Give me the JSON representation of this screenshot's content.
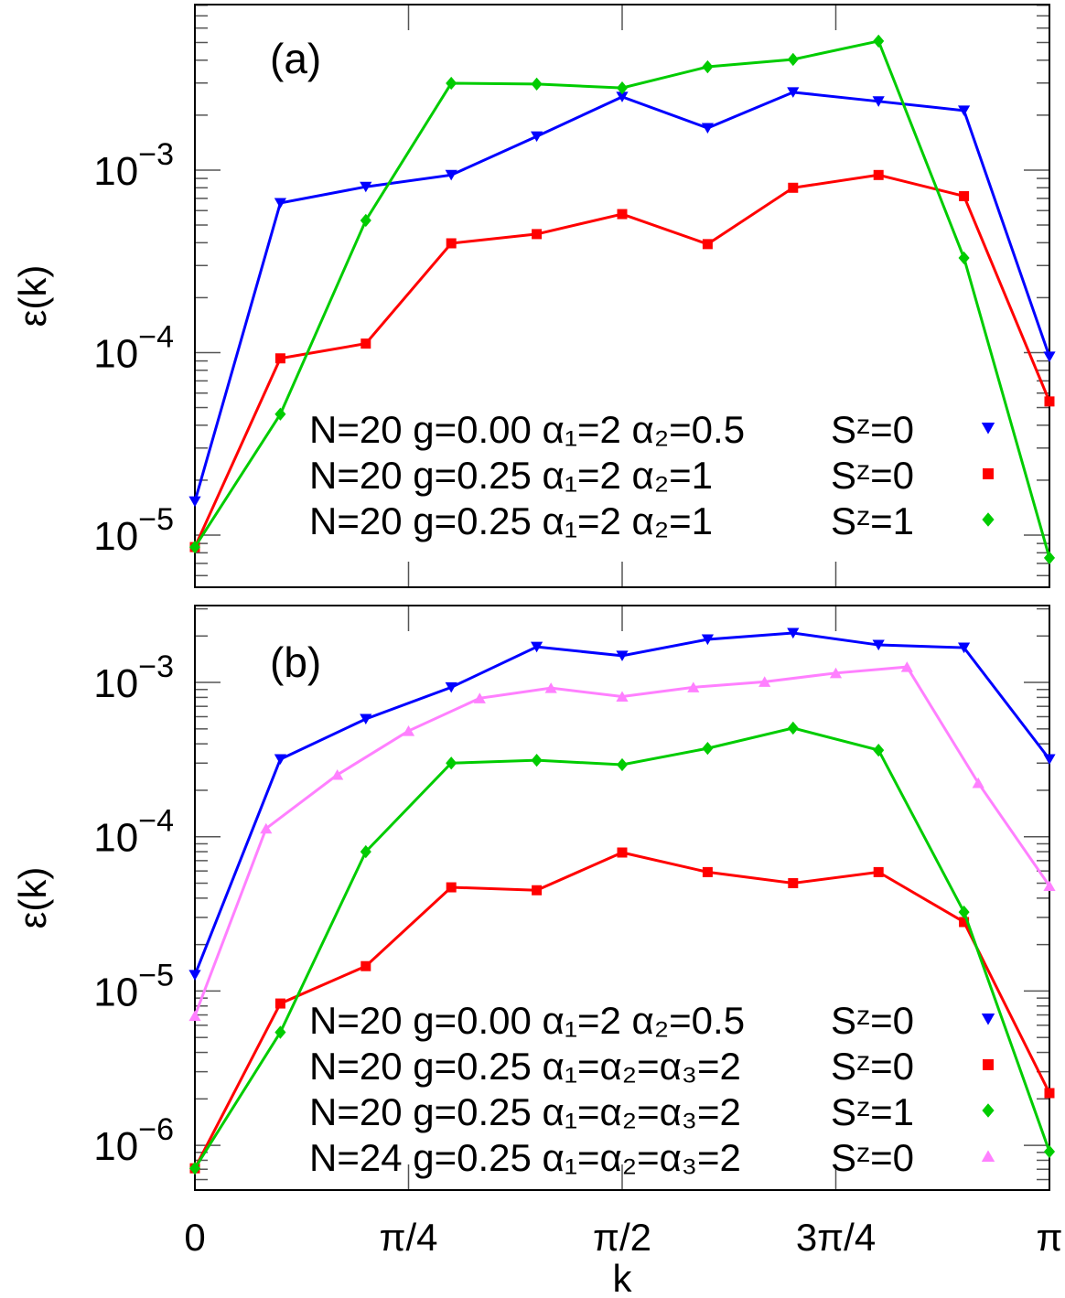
{
  "chart_data": [
    {
      "type": "line",
      "panel_label": "(a)",
      "ylabel": "ε(k)",
      "xlabel": "",
      "y_scale": "log",
      "ylim": [
        0.00807,
        5.18e-06
      ],
      "ylim_note": "",
      "y_range": [
        5.18e-06,
        0.00807
      ],
      "x_range": [
        0,
        3.14159
      ],
      "y_ticks": [
        {
          "base": "10",
          "exp": "−3",
          "value": 0.001
        },
        {
          "base": "10",
          "exp": "−4",
          "value": 0.0001
        },
        {
          "base": "10",
          "exp": "−5",
          "value": 1e-05
        }
      ],
      "series": [
        {
          "name": "N=20 g=0.00 α₁=2 α₂=0.5",
          "spin": "Sᶻ=0",
          "color": "#0000ff",
          "marker": "triangle-down",
          "x": [
            0,
            0.1,
            0.2,
            0.3,
            0.4,
            0.5,
            0.6,
            0.7,
            0.8,
            0.9,
            1.0
          ],
          "values": [
            1.53e-05,
            0.00066,
            0.00081,
            0.00094,
            0.00153,
            0.00252,
            0.0017,
            0.00267,
            0.00238,
            0.00212,
            9.5e-05
          ]
        },
        {
          "name": "N=20 g=0.25 α₁=2 α₂=1",
          "spin": "Sᶻ=0",
          "color": "#ff0000",
          "marker": "square",
          "x": [
            0,
            0.1,
            0.2,
            0.3,
            0.4,
            0.5,
            0.6,
            0.7,
            0.8,
            0.9,
            1.0
          ],
          "values": [
            8.6e-06,
            9.3e-05,
            0.000112,
            0.000397,
            0.000446,
            0.000574,
            0.000393,
            0.0008,
            0.00094,
            0.00072,
            5.4e-05
          ]
        },
        {
          "name": "N=20 g=0.25 α₁=2 α₂=1",
          "spin": "Sᶻ=1",
          "color": "#00cc00",
          "marker": "diamond",
          "x": [
            0,
            0.1,
            0.2,
            0.3,
            0.4,
            0.5,
            0.6,
            0.7,
            0.8,
            0.9,
            1.0
          ],
          "values": [
            8.6e-06,
            4.6e-05,
            0.00053,
            0.00299,
            0.00296,
            0.00282,
            0.00368,
            0.00404,
            0.00509,
            0.00033,
            7.5e-06
          ]
        }
      ],
      "legend_position": "bottom-right",
      "grid": false
    },
    {
      "type": "line",
      "panel_label": "(b)",
      "ylabel": "ε(k)",
      "xlabel": "k",
      "y_scale": "log",
      "y_range": [
        5.13e-07,
        0.00315
      ],
      "x_range": [
        0,
        3.14159
      ],
      "x_ticks": [
        "0",
        "π/4",
        "π/2",
        "3π/4",
        "π"
      ],
      "x_tick_values_over_pi": [
        0,
        0.25,
        0.5,
        0.75,
        1
      ],
      "y_ticks": [
        {
          "base": "10",
          "exp": "−3",
          "value": 0.001
        },
        {
          "base": "10",
          "exp": "−4",
          "value": 0.0001
        },
        {
          "base": "10",
          "exp": "−5",
          "value": 1e-05
        },
        {
          "base": "10",
          "exp": "−6",
          "value": 1e-06
        }
      ],
      "series": [
        {
          "name": "N=20 g=0.00 α₁=2 α₂=0.5",
          "spin": "Sᶻ=0",
          "color": "#0000ff",
          "marker": "triangle-down",
          "x": [
            0,
            0.1,
            0.2,
            0.3,
            0.4,
            0.5,
            0.6,
            0.7,
            0.8,
            0.9,
            1.0
          ],
          "values": [
            1.27e-05,
            0.000318,
            0.00058,
            0.00093,
            0.0017,
            0.00149,
            0.0019,
            0.00209,
            0.00175,
            0.00168,
            0.000318
          ]
        },
        {
          "name": "N=20 g=0.25 α₁=α₂=α₃=2",
          "spin": "Sᶻ=0",
          "color": "#ff0000",
          "marker": "square",
          "x": [
            0,
            0.1,
            0.2,
            0.3,
            0.4,
            0.5,
            0.6,
            0.7,
            0.8,
            0.9,
            1.0
          ],
          "values": [
            7.1e-07,
            8.3e-06,
            1.45e-05,
            4.7e-05,
            4.5e-05,
            7.9e-05,
            5.9e-05,
            5e-05,
            5.9e-05,
            2.8e-05,
            2.18e-06
          ]
        },
        {
          "name": "N=20 g=0.25 α₁=α₂=α₃=2",
          "spin": "Sᶻ=1",
          "color": "#00cc00",
          "marker": "diamond",
          "x": [
            0,
            0.1,
            0.2,
            0.3,
            0.4,
            0.5,
            0.6,
            0.7,
            0.8,
            0.9,
            1.0
          ],
          "values": [
            7.1e-07,
            5.4e-06,
            8e-05,
            0.0003,
            0.000313,
            0.000293,
            0.000374,
            0.000506,
            0.000364,
            3.25e-05,
            9.1e-07
          ]
        },
        {
          "name": "N=24 g=0.25 α₁=α₂=α₃=2",
          "spin": "Sᶻ=0",
          "color": "#ff80ff",
          "marker": "triangle-up",
          "x": [
            0,
            0.0833,
            0.1667,
            0.25,
            0.3333,
            0.4167,
            0.5,
            0.5833,
            0.6667,
            0.75,
            0.8333,
            0.9167,
            1.0
          ],
          "values": [
            6.9e-06,
            0.000113,
            0.000252,
            0.000485,
            0.00079,
            0.00092,
            0.00081,
            0.00093,
            0.00101,
            0.00115,
            0.00126,
            0.000223,
            4.8e-05
          ]
        }
      ],
      "legend_position": "bottom-right",
      "grid": false
    }
  ]
}
